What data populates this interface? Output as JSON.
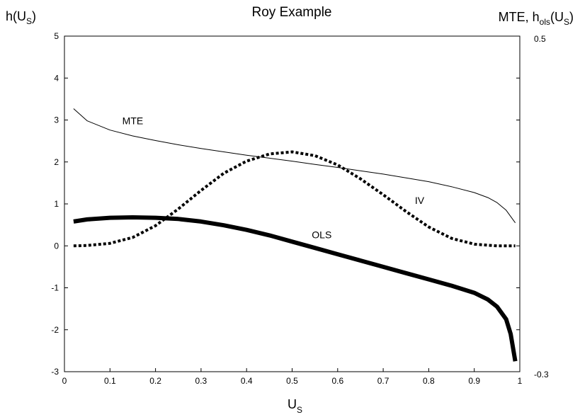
{
  "chart_data": {
    "type": "line",
    "title": "Roy Example",
    "xlabel": {
      "main": "U",
      "sub": "S"
    },
    "ylabel_left": {
      "main": "h(U",
      "sub": "S",
      "suffix": ")"
    },
    "ylabel_right": {
      "pre": "MTE, h",
      "sub1": "ols",
      "mid": "(U",
      "sub2": "S",
      "suffix": ")"
    },
    "xlim": [
      0,
      1
    ],
    "ylim": [
      -3,
      5
    ],
    "y2lim": [
      -0.3,
      0.5
    ],
    "x_ticks": [
      "0",
      "0.1",
      "0.2",
      "0.3",
      "0.4",
      "0.5",
      "0.6",
      "0.7",
      "0.8",
      "0.9",
      "1"
    ],
    "y_ticks": [
      "-3",
      "-2",
      "-1",
      "0",
      "1",
      "2",
      "3",
      "4",
      "5"
    ],
    "y2_ticks": [
      "-0.3",
      "0.5"
    ],
    "grid": false,
    "series": [
      {
        "name": "MTE",
        "style": "thin",
        "points": [
          [
            0.02,
            3.27
          ],
          [
            0.05,
            2.98
          ],
          [
            0.1,
            2.76
          ],
          [
            0.15,
            2.62
          ],
          [
            0.2,
            2.51
          ],
          [
            0.25,
            2.41
          ],
          [
            0.3,
            2.32
          ],
          [
            0.35,
            2.24
          ],
          [
            0.4,
            2.16
          ],
          [
            0.45,
            2.09
          ],
          [
            0.5,
            2.02
          ],
          [
            0.55,
            1.94
          ],
          [
            0.6,
            1.87
          ],
          [
            0.65,
            1.79
          ],
          [
            0.7,
            1.71
          ],
          [
            0.75,
            1.62
          ],
          [
            0.8,
            1.53
          ],
          [
            0.85,
            1.41
          ],
          [
            0.9,
            1.27
          ],
          [
            0.93,
            1.15
          ],
          [
            0.95,
            1.03
          ],
          [
            0.97,
            0.85
          ],
          [
            0.99,
            0.55
          ]
        ]
      },
      {
        "name": "IV",
        "style": "dotted",
        "points": [
          [
            0.02,
            0.0
          ],
          [
            0.05,
            0.01
          ],
          [
            0.1,
            0.06
          ],
          [
            0.15,
            0.2
          ],
          [
            0.2,
            0.48
          ],
          [
            0.25,
            0.88
          ],
          [
            0.3,
            1.32
          ],
          [
            0.35,
            1.73
          ],
          [
            0.4,
            2.02
          ],
          [
            0.45,
            2.19
          ],
          [
            0.5,
            2.24
          ],
          [
            0.55,
            2.15
          ],
          [
            0.6,
            1.93
          ],
          [
            0.65,
            1.6
          ],
          [
            0.7,
            1.22
          ],
          [
            0.75,
            0.82
          ],
          [
            0.8,
            0.45
          ],
          [
            0.85,
            0.18
          ],
          [
            0.9,
            0.04
          ],
          [
            0.95,
            0.0
          ],
          [
            0.99,
            0.0
          ]
        ]
      },
      {
        "name": "OLS",
        "style": "thick",
        "points": [
          [
            0.02,
            0.58
          ],
          [
            0.05,
            0.63
          ],
          [
            0.1,
            0.67
          ],
          [
            0.15,
            0.68
          ],
          [
            0.2,
            0.67
          ],
          [
            0.25,
            0.64
          ],
          [
            0.3,
            0.58
          ],
          [
            0.35,
            0.49
          ],
          [
            0.4,
            0.38
          ],
          [
            0.45,
            0.25
          ],
          [
            0.5,
            0.1
          ],
          [
            0.55,
            -0.05
          ],
          [
            0.6,
            -0.2
          ],
          [
            0.65,
            -0.35
          ],
          [
            0.7,
            -0.5
          ],
          [
            0.75,
            -0.65
          ],
          [
            0.8,
            -0.8
          ],
          [
            0.85,
            -0.95
          ],
          [
            0.9,
            -1.12
          ],
          [
            0.93,
            -1.28
          ],
          [
            0.95,
            -1.45
          ],
          [
            0.97,
            -1.75
          ],
          [
            0.98,
            -2.1
          ],
          [
            0.99,
            -2.75
          ]
        ]
      }
    ],
    "annotations": [
      {
        "text": "MTE",
        "x": 0.15,
        "y": 2.9
      },
      {
        "text": "IV",
        "x": 0.78,
        "y": 1.0
      },
      {
        "text": "OLS",
        "x": 0.565,
        "y": 0.18
      }
    ]
  }
}
